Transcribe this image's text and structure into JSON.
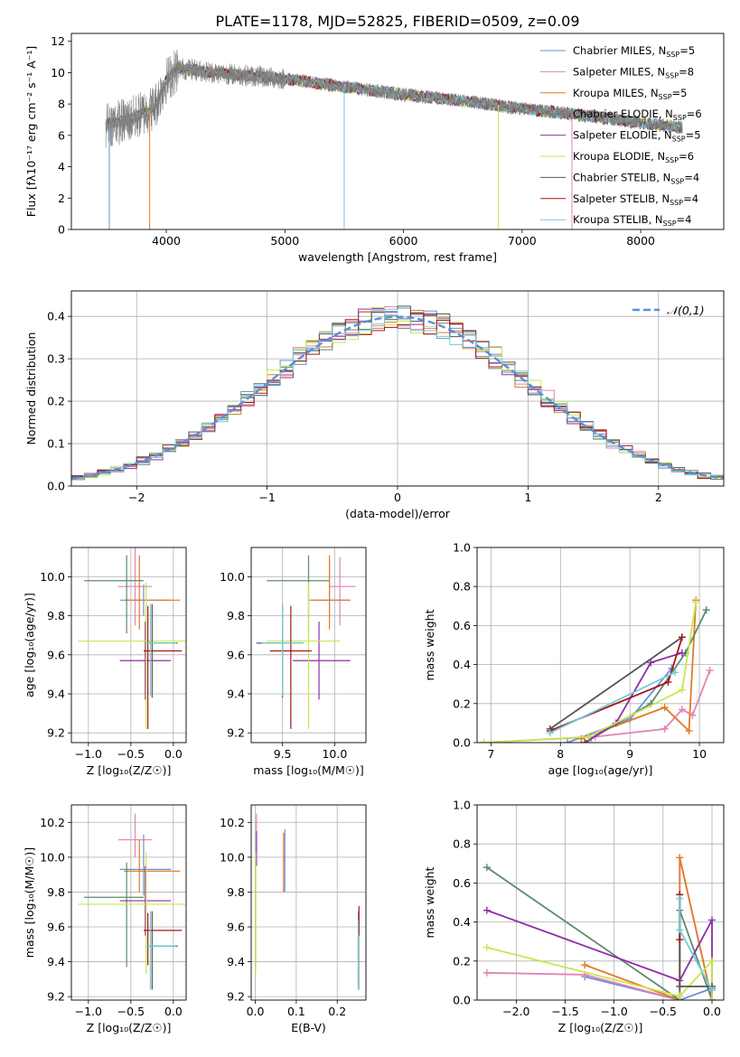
{
  "title": "PLATE=1178, MJD=52825, FIBERID=0509, z=0.09",
  "colors": {
    "Chabrier MILES": "#6a8fd6",
    "Salpeter MILES": "#e283b5",
    "Kroupa MILES": "#e07b2a",
    "Chabrier ELODIE": "#5e8a6b",
    "Salpeter ELODIE": "#8e2ea6",
    "Kroupa ELODIE": "#c6e84e",
    "Chabrier STELIB": "#555555",
    "Salpeter STELIB": "#a51518",
    "Kroupa STELIB": "#72ccd8",
    "data": "#808080",
    "normal": "#5b8fd6"
  },
  "chart_data": [
    {
      "type": "line",
      "id": "spectrum",
      "xlabel": "wavelength [Angstrom, rest frame]",
      "ylabel": "Flux [fλ10⁻¹⁷ erg cm⁻² s⁻¹ A⁻¹]",
      "xlim": [
        3200,
        8700
      ],
      "ylim": [
        0,
        12.5
      ],
      "xticks": [
        4000,
        5000,
        6000,
        7000,
        8000
      ],
      "yticks": [
        0,
        2,
        4,
        6,
        8,
        10,
        12
      ],
      "legend_position": "top-right",
      "legend": [
        {
          "label": "Chabrier MILES, N",
          "sub": "SSP",
          "tail": "=5"
        },
        {
          "label": "Salpeter MILES, N",
          "sub": "SSP",
          "tail": "=8"
        },
        {
          "label": "Kroupa MILES, N",
          "sub": "SSP",
          "tail": "=5"
        },
        {
          "label": "Chabrier ELODIE, N",
          "sub": "SSP",
          "tail": "=6"
        },
        {
          "label": "Salpeter ELODIE, N",
          "sub": "SSP",
          "tail": "=5"
        },
        {
          "label": "Kroupa ELODIE, N",
          "sub": "SSP",
          "tail": "=6"
        },
        {
          "label": "Chabrier STELIB, N",
          "sub": "SSP",
          "tail": "=4"
        },
        {
          "label": "Salpeter STELIB, N",
          "sub": "SSP",
          "tail": "=4"
        },
        {
          "label": "Kroupa STELIB, N",
          "sub": "SSP",
          "tail": "=4"
        }
      ],
      "data_range": [
        3490,
        8350
      ],
      "continuum": [
        [
          3490,
          6.7
        ],
        [
          3700,
          7.0
        ],
        [
          3900,
          7.8
        ],
        [
          4000,
          9.5
        ],
        [
          4100,
          10.3
        ],
        [
          4400,
          10.0
        ],
        [
          5000,
          9.6
        ],
        [
          5500,
          9.1
        ],
        [
          6000,
          8.6
        ],
        [
          6500,
          8.2
        ],
        [
          7000,
          7.7
        ],
        [
          7500,
          7.3
        ],
        [
          8000,
          6.8
        ],
        [
          8350,
          6.5
        ]
      ]
    },
    {
      "type": "line",
      "id": "residuals",
      "xlabel": "(data-model)/error",
      "ylabel": "Normed distribution",
      "xlim": [
        -2.5,
        2.5
      ],
      "ylim": [
        0,
        0.46
      ],
      "xticks": [
        -2,
        -1,
        0,
        1,
        2
      ],
      "yticks": [
        0.0,
        0.1,
        0.2,
        0.3,
        0.4
      ],
      "legend_position": "top-right",
      "normal_label": "𝒩(0,1)",
      "bin_width": 0.1
    },
    {
      "type": "scatter",
      "id": "age-vs-Z",
      "xlabel": "Z [log₁₀(Z/Z☉)]",
      "ylabel": "age  [log₁₀(age/yr)]",
      "xlim": [
        -1.2,
        0.15
      ],
      "ylim": [
        9.15,
        10.15
      ],
      "xticks": [
        -1.0,
        -0.5,
        0.0
      ],
      "yticks": [
        9.2,
        9.4,
        9.6,
        9.8,
        10.0
      ],
      "points": [
        {
          "s": "Chabrier MILES",
          "x": -0.35,
          "xe": [
            0.28,
            0.32
          ],
          "y": 9.88,
          "ye": [
            0.08,
            0.08
          ]
        },
        {
          "s": "Salpeter MILES",
          "x": -0.45,
          "xe": [
            0.2,
            0.2
          ],
          "y": 9.95,
          "ye": [
            0.2,
            0.2
          ]
        },
        {
          "s": "Kroupa MILES",
          "x": -0.4,
          "xe": [
            0.18,
            0.48
          ],
          "y": 9.88,
          "ye": [
            0.15,
            0.23
          ]
        },
        {
          "s": "Chabrier ELODIE",
          "x": -0.55,
          "xe": [
            0.5,
            0.2
          ],
          "y": 9.98,
          "ye": [
            0.27,
            0.13
          ]
        },
        {
          "s": "Salpeter ELODIE",
          "x": -0.33,
          "xe": [
            0.3,
            0.3
          ],
          "y": 9.57,
          "ye": [
            0.2,
            0.2
          ]
        },
        {
          "s": "Kroupa ELODIE",
          "x": -0.32,
          "xe": [
            0.8,
            0.5
          ],
          "y": 9.67,
          "ye": [
            0.45,
            0.3
          ]
        },
        {
          "s": "Chabrier STELIB",
          "x": -0.25,
          "xe": [
            0.05,
            0.3
          ],
          "y": 9.66,
          "ye": [
            0.28,
            0.2
          ]
        },
        {
          "s": "Salpeter STELIB",
          "x": -0.3,
          "xe": [
            0.05,
            0.4
          ],
          "y": 9.62,
          "ye": [
            0.4,
            0.23
          ]
        },
        {
          "s": "Kroupa STELIB",
          "x": -0.27,
          "xe": [
            0.05,
            0.3
          ],
          "y": 9.66,
          "ye": [
            0.27,
            0.2
          ]
        }
      ]
    },
    {
      "type": "scatter",
      "id": "age-vs-mass",
      "xlabel": "mass [log₁₀(M/M☉)]",
      "ylabel": "",
      "xlim": [
        9.2,
        10.3
      ],
      "ylim": [
        9.15,
        10.15
      ],
      "xticks": [
        9.5,
        10.0
      ],
      "yticks": [
        9.2,
        9.4,
        9.6,
        9.8,
        10.0
      ],
      "points": [
        {
          "s": "Chabrier MILES",
          "x": 9.95,
          "xe": [
            0.15,
            0.2
          ],
          "y": 9.88,
          "ye": [
            0.08,
            0.2
          ]
        },
        {
          "s": "Salpeter MILES",
          "x": 10.05,
          "xe": [
            0.1,
            0.15
          ],
          "y": 9.95,
          "ye": [
            0.2,
            0.15
          ]
        },
        {
          "s": "Kroupa MILES",
          "x": 9.95,
          "xe": [
            0.2,
            0.2
          ],
          "y": 9.88,
          "ye": [
            0.15,
            0.23
          ]
        },
        {
          "s": "Chabrier ELODIE",
          "x": 9.75,
          "xe": [
            0.4,
            0.2
          ],
          "y": 9.98,
          "ye": [
            0.27,
            0.13
          ]
        },
        {
          "s": "Salpeter ELODIE",
          "x": 9.85,
          "xe": [
            0.25,
            0.3
          ],
          "y": 9.57,
          "ye": [
            0.2,
            0.2
          ]
        },
        {
          "s": "Kroupa ELODIE",
          "x": 9.75,
          "xe": [
            0.4,
            0.3
          ],
          "y": 9.67,
          "ye": [
            0.45,
            0.3
          ]
        },
        {
          "s": "Chabrier STELIB",
          "x": 9.5,
          "xe": [
            0.25,
            0.2
          ],
          "y": 9.66,
          "ye": [
            0.28,
            0.2
          ]
        },
        {
          "s": "Salpeter STELIB",
          "x": 9.58,
          "xe": [
            0.2,
            0.2
          ],
          "y": 9.62,
          "ye": [
            0.4,
            0.23
          ]
        },
        {
          "s": "Kroupa STELIB",
          "x": 9.5,
          "xe": [
            0.2,
            0.2
          ],
          "y": 9.66,
          "ye": [
            0.27,
            0.2
          ]
        }
      ]
    },
    {
      "type": "line",
      "id": "massweight-vs-age",
      "xlabel": "age  [log₁₀(age/yr)]",
      "ylabel": "mass weight",
      "xlim": [
        6.8,
        10.35
      ],
      "ylim": [
        0,
        1.0
      ],
      "xticks": [
        7,
        8,
        9,
        10
      ],
      "yticks": [
        0.0,
        0.2,
        0.4,
        0.6,
        0.8,
        1.0
      ],
      "series": [
        {
          "s": "Chabrier MILES",
          "x": [
            8.1,
            9.0,
            9.6
          ],
          "y": [
            0.0,
            0.12,
            0.38
          ]
        },
        {
          "s": "Salpeter MILES",
          "x": [
            6.9,
            8.5,
            9.5,
            9.75,
            9.9,
            10.15
          ],
          "y": [
            0.0,
            0.03,
            0.07,
            0.17,
            0.14,
            0.37
          ]
        },
        {
          "s": "Kroupa MILES",
          "x": [
            8.3,
            9.5,
            9.85,
            9.95
          ],
          "y": [
            0.02,
            0.18,
            0.06,
            0.73
          ]
        },
        {
          "s": "Chabrier ELODIE",
          "x": [
            8.4,
            9.3,
            9.8,
            10.1
          ],
          "y": [
            0.01,
            0.2,
            0.46,
            0.68
          ]
        },
        {
          "s": "Salpeter ELODIE",
          "x": [
            8.35,
            8.8,
            9.3,
            9.75
          ],
          "y": [
            0.0,
            0.1,
            0.41,
            0.46
          ]
        },
        {
          "s": "Kroupa ELODIE",
          "x": [
            6.9,
            8.4,
            9.75,
            9.95
          ],
          "y": [
            0.0,
            0.03,
            0.27,
            0.72
          ]
        },
        {
          "s": "Chabrier STELIB",
          "x": [
            7.85,
            9.75
          ],
          "y": [
            0.07,
            0.54
          ]
        },
        {
          "s": "Salpeter STELIB",
          "x": [
            7.85,
            9.55,
            9.75
          ],
          "y": [
            0.06,
            0.31,
            0.54
          ]
        },
        {
          "s": "Kroupa STELIB",
          "x": [
            7.85,
            9.65
          ],
          "y": [
            0.05,
            0.36
          ]
        }
      ]
    },
    {
      "type": "scatter",
      "id": "mass-vs-Z",
      "xlabel": "Z [log₁₀(Z/Z☉)]",
      "ylabel": "mass [log₁₀(M/M☉)]",
      "xlim": [
        -1.2,
        0.15
      ],
      "ylim": [
        9.18,
        10.3
      ],
      "xticks": [
        -1.0,
        -0.5,
        0.0
      ],
      "yticks": [
        9.2,
        9.4,
        9.6,
        9.8,
        10.0,
        10.2
      ],
      "points": [
        {
          "s": "Chabrier MILES",
          "x": -0.35,
          "xe": [
            0.28,
            0.32
          ],
          "y": 9.93,
          "ye": [
            0.15,
            0.2
          ]
        },
        {
          "s": "Salpeter MILES",
          "x": -0.45,
          "xe": [
            0.2,
            0.2
          ],
          "y": 10.1,
          "ye": [
            0.1,
            0.15
          ]
        },
        {
          "s": "Kroupa MILES",
          "x": -0.4,
          "xe": [
            0.18,
            0.48
          ],
          "y": 9.92,
          "ye": [
            0.12,
            0.18
          ]
        },
        {
          "s": "Chabrier ELODIE",
          "x": -0.55,
          "xe": [
            0.5,
            0.2
          ],
          "y": 9.77,
          "ye": [
            0.4,
            0.2
          ]
        },
        {
          "s": "Salpeter ELODIE",
          "x": -0.33,
          "xe": [
            0.3,
            0.3
          ],
          "y": 9.75,
          "ye": [
            0.2,
            0.2
          ]
        },
        {
          "s": "Kroupa ELODIE",
          "x": -0.32,
          "xe": [
            0.8,
            0.5
          ],
          "y": 9.73,
          "ye": [
            0.4,
            0.3
          ]
        },
        {
          "s": "Chabrier STELIB",
          "x": -0.25,
          "xe": [
            0.05,
            0.3
          ],
          "y": 9.49,
          "ye": [
            0.25,
            0.2
          ]
        },
        {
          "s": "Salpeter STELIB",
          "x": -0.3,
          "xe": [
            0.05,
            0.4
          ],
          "y": 9.58,
          "ye": [
            0.2,
            0.1
          ]
        },
        {
          "s": "Kroupa STELIB",
          "x": -0.27,
          "xe": [
            0.05,
            0.3
          ],
          "y": 9.49,
          "ye": [
            0.25,
            0.2
          ]
        }
      ]
    },
    {
      "type": "scatter",
      "id": "mass-vs-ebv",
      "xlabel": "E(B-V)",
      "ylabel": "",
      "xlim": [
        -0.01,
        0.27
      ],
      "ylim": [
        9.18,
        10.3
      ],
      "xticks": [
        0.0,
        0.1,
        0.2
      ],
      "yticks": [
        9.2,
        9.4,
        9.6,
        9.8,
        10.0,
        10.2
      ],
      "points": [
        {
          "s": "Chabrier MILES",
          "x": 0.072,
          "xe": [
            0,
            0
          ],
          "y": 9.98,
          "ye": [
            0.18,
            0.18
          ]
        },
        {
          "s": "Salpeter MILES",
          "x": 0.003,
          "xe": [
            0,
            0
          ],
          "y": 10.1,
          "ye": [
            0.1,
            0.15
          ]
        },
        {
          "s": "Kroupa MILES",
          "x": 0.069,
          "xe": [
            0,
            0
          ],
          "y": 9.98,
          "ye": [
            0.18,
            0.16
          ]
        },
        {
          "s": "Chabrier ELODIE",
          "x": 0.001,
          "xe": [
            0,
            0
          ],
          "y": 9.77,
          "ye": [
            0.4,
            0.2
          ]
        },
        {
          "s": "Salpeter ELODIE",
          "x": 0.003,
          "xe": [
            0,
            0
          ],
          "y": 10.05,
          "ye": [
            0.1,
            0.1
          ]
        },
        {
          "s": "Kroupa ELODIE",
          "x": 0.001,
          "xe": [
            0,
            0
          ],
          "y": 9.73,
          "ye": [
            0.4,
            0.3
          ]
        },
        {
          "s": "Chabrier STELIB",
          "x": 0.252,
          "xe": [
            0,
            0
          ],
          "y": 9.49,
          "ye": [
            0.25,
            0.2
          ]
        },
        {
          "s": "Salpeter STELIB",
          "x": 0.253,
          "xe": [
            0,
            0
          ],
          "y": 9.6,
          "ye": [
            0.05,
            0.12
          ]
        },
        {
          "s": "Kroupa STELIB",
          "x": 0.251,
          "xe": [
            0,
            0
          ],
          "y": 9.44,
          "ye": [
            0.2,
            0.2
          ]
        }
      ]
    },
    {
      "type": "line",
      "id": "massweight-vs-Z",
      "xlabel": "Z [log₁₀(Z/Z☉)]",
      "ylabel": "mass weight",
      "xlim": [
        -2.4,
        0.12
      ],
      "ylim": [
        0,
        1.0
      ],
      "xticks": [
        -2.0,
        -1.5,
        -1.0,
        -0.5,
        0.0
      ],
      "yticks": [
        0.0,
        0.2,
        0.4,
        0.6,
        0.8,
        1.0
      ],
      "series": [
        {
          "s": "Chabrier MILES",
          "x": [
            -1.3,
            -0.33,
            0.0
          ],
          "y": [
            0.12,
            0.0,
            0.06
          ]
        },
        {
          "s": "Salpeter MILES",
          "x": [
            -2.3,
            -1.3,
            -0.33,
            -0.33,
            0.0
          ],
          "y": [
            0.14,
            0.13,
            0.0,
            0.73,
            0.0
          ]
        },
        {
          "s": "Kroupa MILES",
          "x": [
            -1.3,
            -0.33,
            -0.33,
            0.0
          ],
          "y": [
            0.18,
            0.0,
            0.73,
            0.0
          ]
        },
        {
          "s": "Chabrier ELODIE",
          "x": [
            -2.3,
            -0.33,
            -0.33,
            0.0
          ],
          "y": [
            0.68,
            0.0,
            0.46,
            0.0
          ]
        },
        {
          "s": "Salpeter ELODIE",
          "x": [
            -2.3,
            -0.33,
            0.0,
            0.0
          ],
          "y": [
            0.46,
            0.1,
            0.41,
            0.0
          ]
        },
        {
          "s": "Kroupa ELODIE",
          "x": [
            -2.3,
            -0.33,
            0.0,
            0.0
          ],
          "y": [
            0.27,
            0.02,
            0.2,
            0.0
          ]
        },
        {
          "s": "Chabrier STELIB",
          "x": [
            -0.33,
            -0.33,
            0.0
          ],
          "y": [
            0.54,
            0.07,
            0.07
          ]
        },
        {
          "s": "Salpeter STELIB",
          "x": [
            -0.33,
            -0.33
          ],
          "y": [
            0.54,
            0.31
          ]
        },
        {
          "s": "Kroupa STELIB",
          "x": [
            -0.33,
            -0.33,
            0.0
          ],
          "y": [
            0.52,
            0.36,
            0.05
          ]
        }
      ]
    }
  ]
}
